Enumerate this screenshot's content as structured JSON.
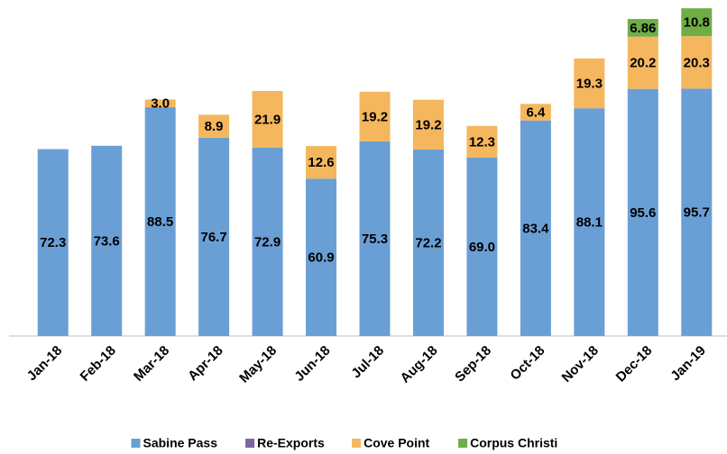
{
  "chart_data": {
    "type": "stacked_bar",
    "categories": [
      "Jan-18",
      "Feb-18",
      "Mar-18",
      "Apr-18",
      "May-18",
      "Jun-18",
      "Jul-18",
      "Aug-18",
      "Sep-18",
      "Oct-18",
      "Nov-18",
      "Dec-18",
      "Jan-19"
    ],
    "series": [
      {
        "name": "Sabine Pass",
        "color": "#6a9fd6",
        "values": [
          72.3,
          73.6,
          88.5,
          76.7,
          72.9,
          60.9,
          75.3,
          72.2,
          69.0,
          83.4,
          88.1,
          95.6,
          95.7
        ],
        "value_labels": [
          "72.3",
          "73.6",
          "88.5",
          "76.7",
          "72.9",
          "60.9",
          "75.3",
          "72.2",
          "69.0",
          "83.4",
          "88.1",
          "95.6",
          "95.7"
        ]
      },
      {
        "name": "Re-Exports",
        "color": "#8064a2",
        "values": [
          null,
          null,
          null,
          null,
          null,
          null,
          null,
          null,
          null,
          null,
          null,
          null,
          null
        ]
      },
      {
        "name": "Cove Point",
        "color": "#f4b75d",
        "values": [
          null,
          null,
          3.0,
          8.9,
          21.9,
          12.6,
          19.2,
          19.2,
          12.3,
          6.4,
          19.3,
          20.2,
          20.3
        ],
        "value_labels": [
          null,
          null,
          "3.0",
          "8.9",
          "21.9",
          "12.6",
          "19.2",
          "19.2",
          "12.3",
          "6.4",
          "19.3",
          "20.2",
          "20.3"
        ]
      },
      {
        "name": "Corpus Christi",
        "color": "#70ad47",
        "values": [
          null,
          null,
          null,
          null,
          null,
          null,
          null,
          null,
          null,
          null,
          null,
          6.86,
          10.8
        ],
        "value_labels": [
          null,
          null,
          null,
          null,
          null,
          null,
          null,
          null,
          null,
          null,
          null,
          "6.86",
          "10.8"
        ]
      }
    ],
    "ylim": [
      0,
      130
    ]
  }
}
